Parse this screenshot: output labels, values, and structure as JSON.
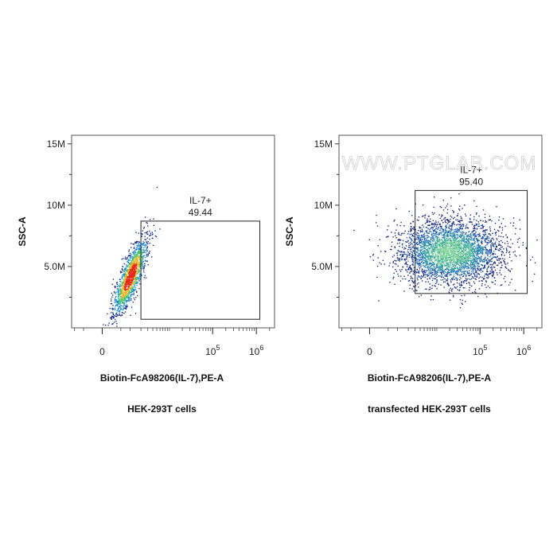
{
  "watermark": "WWW.PTGLAB.COM",
  "chart_data": [
    {
      "type": "scatter",
      "subtype": "flow-cytometry-density-dot-plot",
      "caption": "HEK-293T cells",
      "xlabel": "Biotin-FcA98206(IL-7),PE-A",
      "ylabel": "SSC-A",
      "x_scale": "biexponential",
      "y_scale": "linear",
      "yticks": [
        {
          "label": "5.0M",
          "value": 5000000
        },
        {
          "label": "10M",
          "value": 10000000
        },
        {
          "label": "15M",
          "value": 15000000
        }
      ],
      "xticks": [
        {
          "label": "0",
          "value": 0
        },
        {
          "base": "10",
          "exp": "5",
          "value": 100000
        },
        {
          "base": "10",
          "exp": "6",
          "value": 1000000
        }
      ],
      "ylim": [
        0,
        15700000
      ],
      "grid": false,
      "gate": {
        "name": "IL-7+",
        "value": "49.44",
        "x": [
          2000,
          1200000
        ],
        "y": [
          700000,
          8700000
        ]
      },
      "population": {
        "x_center": 1000,
        "y_center": 4200000,
        "shape": "tight elongated cluster",
        "coloring": "density (blue to green, yellow, red)"
      }
    },
    {
      "type": "scatter",
      "subtype": "flow-cytometry-density-dot-plot",
      "caption": "transfected HEK-293T cells",
      "xlabel": "Biotin-FcA98206(IL-7),PE-A",
      "ylabel": "SSC-A",
      "x_scale": "biexponential",
      "y_scale": "linear",
      "yticks": [
        {
          "label": "5.0M",
          "value": 5000000
        },
        {
          "label": "10M",
          "value": 10000000
        },
        {
          "label": "15M",
          "value": 15000000
        }
      ],
      "xticks": [
        {
          "label": "0",
          "value": 0
        },
        {
          "base": "10",
          "exp": "5",
          "value": 100000
        },
        {
          "base": "10",
          "exp": "6",
          "value": 1000000
        }
      ],
      "ylim": [
        0,
        15700000
      ],
      "grid": false,
      "gate": {
        "name": "IL-7+",
        "value": "95.40",
        "x": [
          3000,
          1200000
        ],
        "y": [
          2800000,
          11200000
        ]
      },
      "population": {
        "x_center": 20000,
        "y_center": 6200000,
        "shape": "broad diffuse cloud",
        "coloring": "density (blue to green)"
      }
    }
  ]
}
